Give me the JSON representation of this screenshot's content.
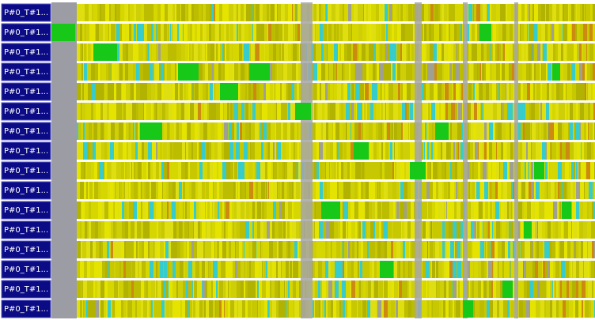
{
  "rows": [
    {
      "label": "P#0_T#1..."
    },
    {
      "label": "P#0_T#1..."
    },
    {
      "label": "P#0_T#1..."
    },
    {
      "label": "P#0_T#1..."
    },
    {
      "label": "P#0_T#1..."
    },
    {
      "label": "P#0_T#1..."
    },
    {
      "label": "P#0_T#1..."
    },
    {
      "label": "P#0_T#1..."
    },
    {
      "label": "P#0_T#1..."
    },
    {
      "label": "P#0_T#1..."
    },
    {
      "label": "P#0_T#1..."
    },
    {
      "label": "P#0_T#1..."
    },
    {
      "label": "P#0_T#1..."
    },
    {
      "label": "P#0_T#1..."
    },
    {
      "label": "P#0_T#1..."
    },
    {
      "label": "P#0_T#1..."
    }
  ]
}
